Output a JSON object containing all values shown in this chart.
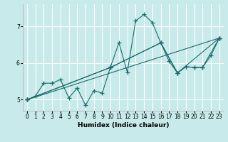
{
  "xlabel": "Humidex (Indice chaleur)",
  "bg_color": "#c8eaea",
  "grid_color": "#ffffff",
  "line_color": "#1a6b6b",
  "x": [
    0,
    1,
    2,
    3,
    4,
    5,
    6,
    7,
    8,
    9,
    10,
    11,
    12,
    13,
    14,
    15,
    16,
    17,
    18,
    19,
    20,
    21,
    22,
    23
  ],
  "line1": [
    5.0,
    5.1,
    5.45,
    5.45,
    5.55,
    5.05,
    5.32,
    4.85,
    5.25,
    5.18,
    5.9,
    6.55,
    5.75,
    7.15,
    7.32,
    7.1,
    6.55,
    6.05,
    5.73,
    5.9,
    5.88,
    5.88,
    6.2,
    6.68
  ],
  "line2_x": [
    0,
    23
  ],
  "line2_y": [
    5.0,
    6.68
  ],
  "line3_x": [
    0,
    10,
    16,
    18,
    23
  ],
  "line3_y": [
    5.0,
    5.88,
    6.55,
    5.73,
    6.68
  ],
  "line4_x": [
    0,
    10,
    16,
    18,
    19,
    20,
    21,
    23
  ],
  "line4_y": [
    5.0,
    5.88,
    6.55,
    5.73,
    5.9,
    5.88,
    5.88,
    6.68
  ],
  "ylim": [
    4.7,
    7.6
  ],
  "xlim": [
    -0.5,
    23.5
  ],
  "yticks": [
    5,
    6,
    7
  ],
  "xticks": [
    0,
    1,
    2,
    3,
    4,
    5,
    6,
    7,
    8,
    9,
    10,
    11,
    12,
    13,
    14,
    15,
    16,
    17,
    18,
    19,
    20,
    21,
    22,
    23
  ]
}
